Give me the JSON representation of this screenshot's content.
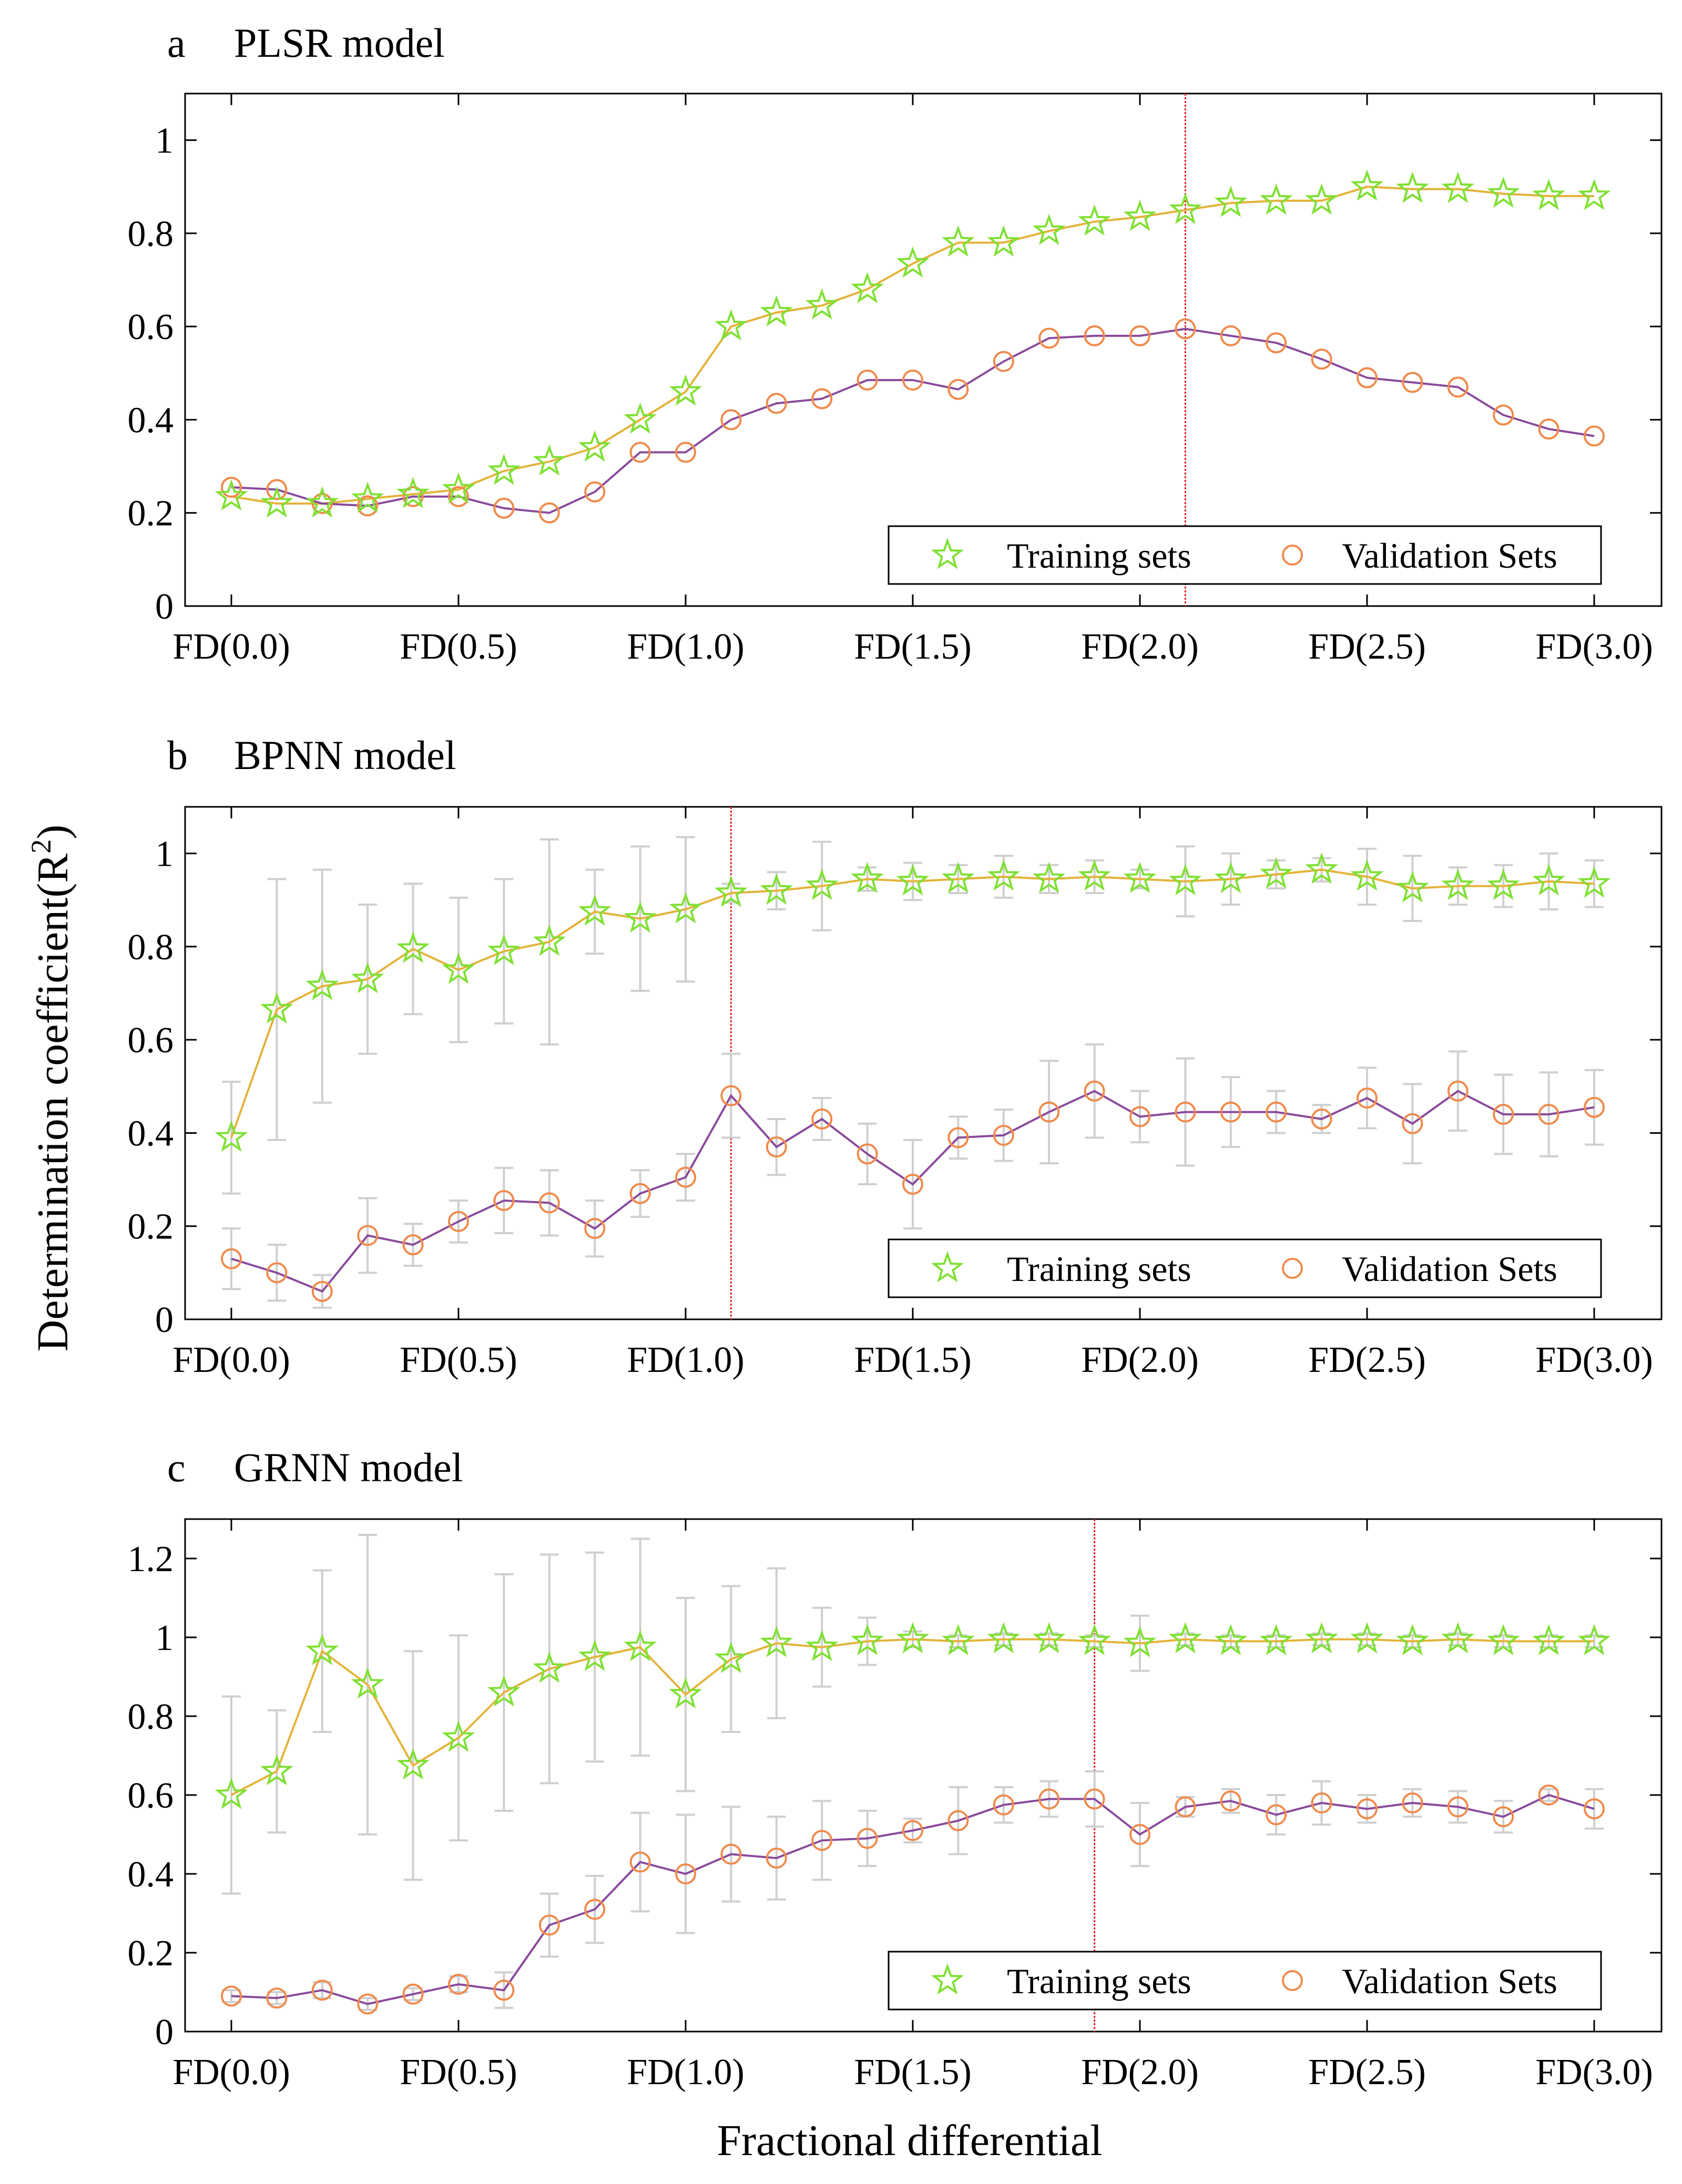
{
  "figure": {
    "shared_ylabel": "Determination coefficient(R",
    "shared_ylabel_sup": "2",
    "shared_ylabel_end": ")",
    "shared_xlabel": "Fractional differential",
    "x_tick_labels": [
      "FD(0.0)",
      "FD(0.5)",
      "FD(1.0)",
      "FD(1.5)",
      "FD(2.0)",
      "FD(2.5)",
      "FD(3.0)"
    ],
    "legend": {
      "training": "Training sets",
      "validation": "Validation Sets"
    },
    "colors": {
      "training_line": "#e3b33a",
      "training_marker": "#7fe033",
      "validation_line": "#8a4a9c",
      "validation_marker": "#f08a4b",
      "error_bar": "#cfcfcf",
      "optimal_line": "#e8202a"
    }
  },
  "chart_data": [
    {
      "type": "line",
      "letter": "a",
      "title": "PLSR model",
      "x": [
        0,
        0.1,
        0.2,
        0.3,
        0.4,
        0.5,
        0.6,
        0.7,
        0.8,
        0.9,
        1.0,
        1.1,
        1.2,
        1.3,
        1.4,
        1.5,
        1.6,
        1.7,
        1.8,
        1.9,
        2.0,
        2.1,
        2.2,
        2.3,
        2.4,
        2.5,
        2.6,
        2.7,
        2.8,
        2.9,
        3.0
      ],
      "ylim": [
        0,
        1.1
      ],
      "yticks": [
        0,
        0.2,
        0.4,
        0.6,
        0.8,
        1
      ],
      "ytick_labels": [
        "0",
        "0.2",
        "0.4",
        "0.6",
        "0.8",
        "1"
      ],
      "vline": 2.1,
      "legend_position": "bottom-right",
      "series": [
        {
          "name": "Training sets",
          "values": [
            0.235,
            0.22,
            0.22,
            0.23,
            0.24,
            0.25,
            0.29,
            0.31,
            0.34,
            0.4,
            0.46,
            0.6,
            0.63,
            0.645,
            0.68,
            0.735,
            0.78,
            0.78,
            0.805,
            0.825,
            0.835,
            0.85,
            0.865,
            0.87,
            0.87,
            0.9,
            0.895,
            0.895,
            0.885,
            0.88,
            0.88
          ]
        },
        {
          "name": "Validation Sets",
          "values": [
            0.255,
            0.25,
            0.22,
            0.215,
            0.235,
            0.235,
            0.21,
            0.2,
            0.245,
            0.33,
            0.33,
            0.4,
            0.435,
            0.445,
            0.485,
            0.485,
            0.465,
            0.525,
            0.575,
            0.58,
            0.58,
            0.595,
            0.58,
            0.565,
            0.53,
            0.49,
            0.48,
            0.47,
            0.41,
            0.38,
            0.365
          ]
        }
      ]
    },
    {
      "type": "line",
      "letter": "b",
      "title": "BPNN model",
      "x": [
        0,
        0.1,
        0.2,
        0.3,
        0.4,
        0.5,
        0.6,
        0.7,
        0.8,
        0.9,
        1.0,
        1.1,
        1.2,
        1.3,
        1.4,
        1.5,
        1.6,
        1.7,
        1.8,
        1.9,
        2.0,
        2.1,
        2.2,
        2.3,
        2.4,
        2.5,
        2.6,
        2.7,
        2.8,
        2.9,
        3.0
      ],
      "ylim": [
        0,
        1.1
      ],
      "yticks": [
        0,
        0.2,
        0.4,
        0.6,
        0.8,
        1
      ],
      "ytick_labels": [
        "0",
        "0.2",
        "0.4",
        "0.6",
        "0.8",
        "1"
      ],
      "vline": 1.1,
      "legend_position": "bottom-right",
      "series": [
        {
          "name": "Training sets",
          "values": [
            0.39,
            0.665,
            0.715,
            0.73,
            0.795,
            0.75,
            0.79,
            0.81,
            0.875,
            0.86,
            0.88,
            0.915,
            0.92,
            0.93,
            0.945,
            0.94,
            0.945,
            0.95,
            0.945,
            0.95,
            0.945,
            0.94,
            0.945,
            0.955,
            0.965,
            0.95,
            0.925,
            0.93,
            0.93,
            0.94,
            0.935
          ],
          "error": [
            0.12,
            0.28,
            0.25,
            0.16,
            0.14,
            0.155,
            0.155,
            0.22,
            0.09,
            0.155,
            0.155,
            0.02,
            0.04,
            0.095,
            0.025,
            0.04,
            0.03,
            0.045,
            0.03,
            0.035,
            0.02,
            0.075,
            0.055,
            0.03,
            0.025,
            0.06,
            0.07,
            0.04,
            0.045,
            0.06,
            0.05
          ]
        },
        {
          "name": "Validation Sets",
          "values": [
            0.13,
            0.1,
            0.06,
            0.18,
            0.16,
            0.21,
            0.255,
            0.25,
            0.195,
            0.27,
            0.305,
            0.48,
            0.37,
            0.43,
            0.355,
            0.29,
            0.39,
            0.395,
            0.445,
            0.49,
            0.435,
            0.445,
            0.445,
            0.445,
            0.43,
            0.475,
            0.42,
            0.49,
            0.44,
            0.44,
            0.455
          ],
          "error": [
            0.065,
            0.06,
            0.035,
            0.08,
            0.045,
            0.045,
            0.07,
            0.07,
            0.06,
            0.05,
            0.05,
            0.09,
            0.06,
            0.045,
            0.065,
            0.095,
            0.045,
            0.055,
            0.11,
            0.1,
            0.055,
            0.115,
            0.075,
            0.045,
            0.03,
            0.065,
            0.085,
            0.085,
            0.085,
            0.09,
            0.08
          ]
        }
      ]
    },
    {
      "type": "line",
      "letter": "c",
      "title": "GRNN model",
      "x": [
        0,
        0.1,
        0.2,
        0.3,
        0.4,
        0.5,
        0.6,
        0.7,
        0.8,
        0.9,
        1.0,
        1.1,
        1.2,
        1.3,
        1.4,
        1.5,
        1.6,
        1.7,
        1.8,
        1.9,
        2.0,
        2.1,
        2.2,
        2.3,
        2.4,
        2.5,
        2.6,
        2.7,
        2.8,
        2.9,
        3.0
      ],
      "ylim": [
        0,
        1.3
      ],
      "yticks": [
        0,
        0.2,
        0.4,
        0.6,
        0.8,
        1,
        1.2
      ],
      "ytick_labels": [
        "0",
        "0.2",
        "0.4",
        "0.6",
        "0.8",
        "1",
        "1.2"
      ],
      "vline": 1.9,
      "legend_position": "bottom-right",
      "series": [
        {
          "name": "Training sets",
          "values": [
            0.6,
            0.66,
            0.965,
            0.88,
            0.675,
            0.745,
            0.86,
            0.92,
            0.95,
            0.975,
            0.855,
            0.945,
            0.985,
            0.975,
            0.99,
            0.995,
            0.99,
            0.995,
            0.995,
            0.99,
            0.985,
            0.995,
            0.99,
            0.99,
            0.995,
            0.995,
            0.99,
            0.995,
            0.99,
            0.99,
            0.99
          ],
          "error": [
            0.25,
            0.155,
            0.205,
            0.38,
            0.29,
            0.26,
            0.3,
            0.29,
            0.265,
            0.275,
            0.245,
            0.185,
            0.19,
            0.1,
            0.06,
            0.02,
            0.015,
            0.015,
            0.015,
            0.015,
            0.07,
            0.015,
            0.015,
            0.015,
            0.015,
            0.015,
            0.015,
            0.015,
            0.015,
            0.015,
            0.015
          ]
        },
        {
          "name": "Validation Sets",
          "values": [
            0.09,
            0.085,
            0.105,
            0.07,
            0.095,
            0.12,
            0.105,
            0.27,
            0.31,
            0.43,
            0.4,
            0.45,
            0.44,
            0.485,
            0.49,
            0.51,
            0.535,
            0.575,
            0.59,
            0.59,
            0.5,
            0.57,
            0.585,
            0.55,
            0.58,
            0.565,
            0.58,
            0.57,
            0.545,
            0.6,
            0.565
          ],
          "error": [
            0.015,
            0.015,
            0.02,
            0.015,
            0.015,
            0.02,
            0.045,
            0.08,
            0.085,
            0.125,
            0.15,
            0.12,
            0.105,
            0.1,
            0.07,
            0.03,
            0.085,
            0.045,
            0.045,
            0.07,
            0.08,
            0.025,
            0.03,
            0.05,
            0.055,
            0.035,
            0.035,
            0.04,
            0.04,
            0.015,
            0.05
          ]
        }
      ]
    }
  ]
}
